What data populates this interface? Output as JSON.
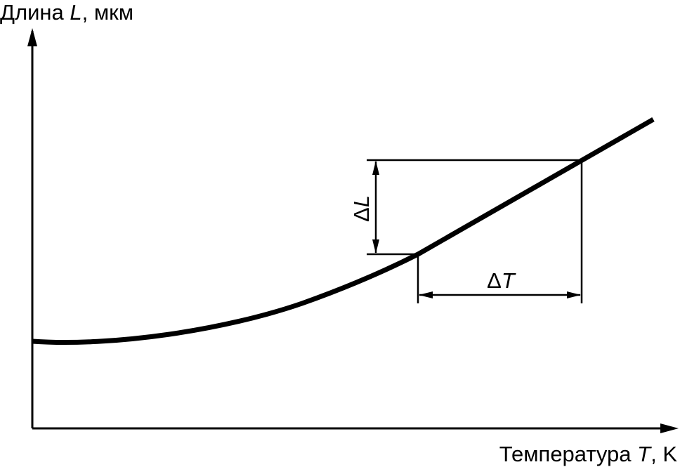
{
  "y_axis_label": {
    "text": "Длина ",
    "symbol": "L",
    "unit": ", мкм"
  },
  "x_axis_label": {
    "text": "Температура ",
    "symbol": "T",
    "unit": ", K"
  },
  "delta_l": {
    "delta": "Δ",
    "symbol": "L"
  },
  "delta_t": {
    "delta": "Δ",
    "symbol": "T"
  }
}
